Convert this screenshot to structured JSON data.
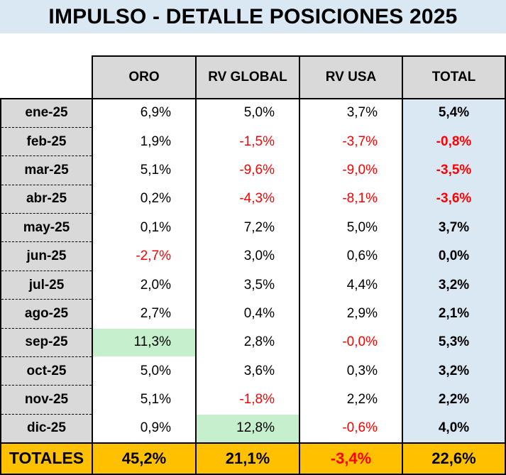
{
  "title": "IMPULSO - DETALLE POSICIONES 2025",
  "columns": [
    "ORO",
    "RV GLOBAL",
    "RV USA",
    "TOTAL"
  ],
  "rows": [
    {
      "month": "ene-25",
      "oro": "6,9%",
      "rv_global": "5,0%",
      "rv_usa": "3,7%",
      "total": "5,4%"
    },
    {
      "month": "feb-25",
      "oro": "1,9%",
      "rv_global": "-1,5%",
      "rv_usa": "-3,7%",
      "total": "-0,8%"
    },
    {
      "month": "mar-25",
      "oro": "5,1%",
      "rv_global": "-9,6%",
      "rv_usa": "-9,0%",
      "total": "-3,5%"
    },
    {
      "month": "abr-25",
      "oro": "0,2%",
      "rv_global": "-4,3%",
      "rv_usa": "-8,1%",
      "total": "-3,6%"
    },
    {
      "month": "may-25",
      "oro": "0,1%",
      "rv_global": "7,2%",
      "rv_usa": "5,0%",
      "total": "3,7%"
    },
    {
      "month": "jun-25",
      "oro": "-2,7%",
      "rv_global": "3,0%",
      "rv_usa": "0,6%",
      "total": "0,0%"
    },
    {
      "month": "jul-25",
      "oro": "2,0%",
      "rv_global": "3,5%",
      "rv_usa": "4,4%",
      "total": "3,2%"
    },
    {
      "month": "ago-25",
      "oro": "2,7%",
      "rv_global": "0,4%",
      "rv_usa": "2,9%",
      "total": "2,1%"
    },
    {
      "month": "sep-25",
      "oro": "11,3%",
      "rv_global": "2,8%",
      "rv_usa": "-0,0%",
      "total": "5,3%"
    },
    {
      "month": "oct-25",
      "oro": "5,0%",
      "rv_global": "3,6%",
      "rv_usa": "0,3%",
      "total": "3,2%"
    },
    {
      "month": "nov-25",
      "oro": "5,1%",
      "rv_global": "-1,8%",
      "rv_usa": "2,2%",
      "total": "2,2%"
    },
    {
      "month": "dic-25",
      "oro": "0,9%",
      "rv_global": "12,8%",
      "rv_usa": "-0,6%",
      "total": "4,0%"
    }
  ],
  "totals": {
    "label": "TOTALES",
    "oro": "45,2%",
    "rv_global": "21,1%",
    "rv_usa": "-3,4%",
    "total": "22,6%"
  },
  "highlights": [
    {
      "month": "sep-25",
      "column": "oro"
    },
    {
      "month": "dic-25",
      "column": "rv_global"
    }
  ],
  "colors": {
    "title_background": "#dae8f4",
    "header_background": "#d9d9d9",
    "total_column_background": "#dae8f4",
    "totals_row_background": "#ffc000",
    "negative_text": "#ff0000",
    "highlight_background": "#c6efce"
  }
}
